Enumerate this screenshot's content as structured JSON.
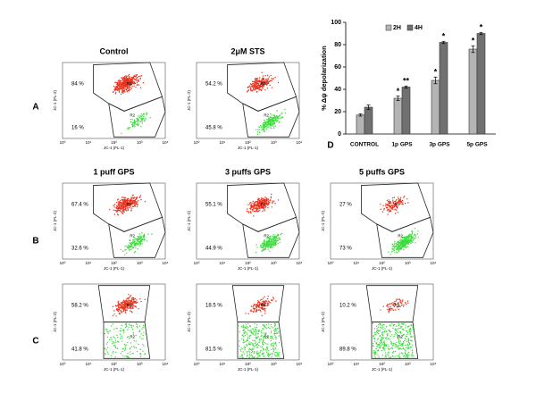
{
  "panel_letters": [
    "A",
    "B",
    "C",
    "D"
  ],
  "flow_axis": {
    "x_label": "JC-1 (FL-1)",
    "y_label": "JC-1 (FL-2)",
    "ticks": [
      "10⁰",
      "10¹",
      "10²",
      "10³",
      "10⁴"
    ],
    "gate_labels": [
      "R1",
      "R2"
    ]
  },
  "flow_panels": [
    {
      "title": "Control",
      "upper": "84 %",
      "lower": "16 %"
    },
    {
      "title": "2μM STS",
      "upper": "54.2 %",
      "lower": "45.8 %"
    },
    {
      "title": "1 puff GPS",
      "upper": "67.4 %",
      "lower": "32.6 %"
    },
    {
      "title": "3 puffs GPS",
      "upper": "55.1 %",
      "lower": "44.9 %"
    },
    {
      "title": "5 puffs GPS",
      "upper": "27 %",
      "lower": "73 %"
    },
    {
      "upper": "58.2 %",
      "lower": "41.8 %"
    },
    {
      "upper": "18.5 %",
      "lower": "81.5 %"
    },
    {
      "upper": "10.2 %",
      "lower": "89.8 %"
    }
  ],
  "chart_data": {
    "type": "bar",
    "y_label": "% Δψ depolarization",
    "categories": [
      "CONTROL",
      "1p GPS",
      "3p GPS",
      "5p GPS"
    ],
    "series": [
      {
        "name": "2H",
        "color": "#b4b4b4",
        "values": [
          17,
          32,
          48,
          76
        ],
        "errors": [
          1,
          2,
          3,
          3
        ],
        "annotations": [
          null,
          "*",
          "*",
          "*"
        ]
      },
      {
        "name": "4H",
        "color": "#707070",
        "values": [
          24,
          42,
          82,
          90
        ],
        "errors": [
          2,
          1,
          1,
          1
        ],
        "annotations": [
          null,
          "**",
          "*",
          "*"
        ]
      }
    ],
    "ylim": [
      0,
      100
    ],
    "yticks": [
      0,
      20,
      40,
      60,
      80,
      100
    ],
    "legend": "upper-left"
  }
}
